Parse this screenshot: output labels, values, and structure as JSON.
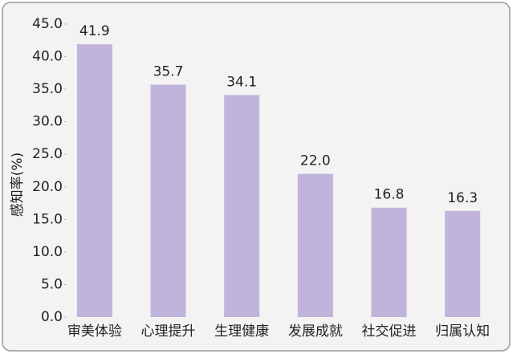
{
  "chart_data": {
    "type": "bar",
    "y_label": "感知率(%)",
    "categories": [
      "审美体验",
      "心理提升",
      "生理健康",
      "发展成就",
      "社交促进",
      "归属认知"
    ],
    "values": [
      41.9,
      35.7,
      34.1,
      22.0,
      16.8,
      16.3
    ],
    "value_labels": [
      "41.9",
      "35.7",
      "34.1",
      "22.0",
      "16.8",
      "16.3"
    ],
    "color": "#c1b4db",
    "ylim": [
      0,
      45
    ],
    "yticks": [
      {
        "value": 0,
        "label": "0.0"
      },
      {
        "value": 5,
        "label": "5.0"
      },
      {
        "value": 10,
        "label": "10.0"
      },
      {
        "value": 15,
        "label": "15.0"
      },
      {
        "value": 20,
        "label": "20.0"
      },
      {
        "value": 25,
        "label": "25.0"
      },
      {
        "value": 30,
        "label": "30.0"
      },
      {
        "value": 35,
        "label": "35.0"
      },
      {
        "value": 40,
        "label": "40.0"
      },
      {
        "value": 45,
        "label": "45.0"
      }
    ]
  }
}
